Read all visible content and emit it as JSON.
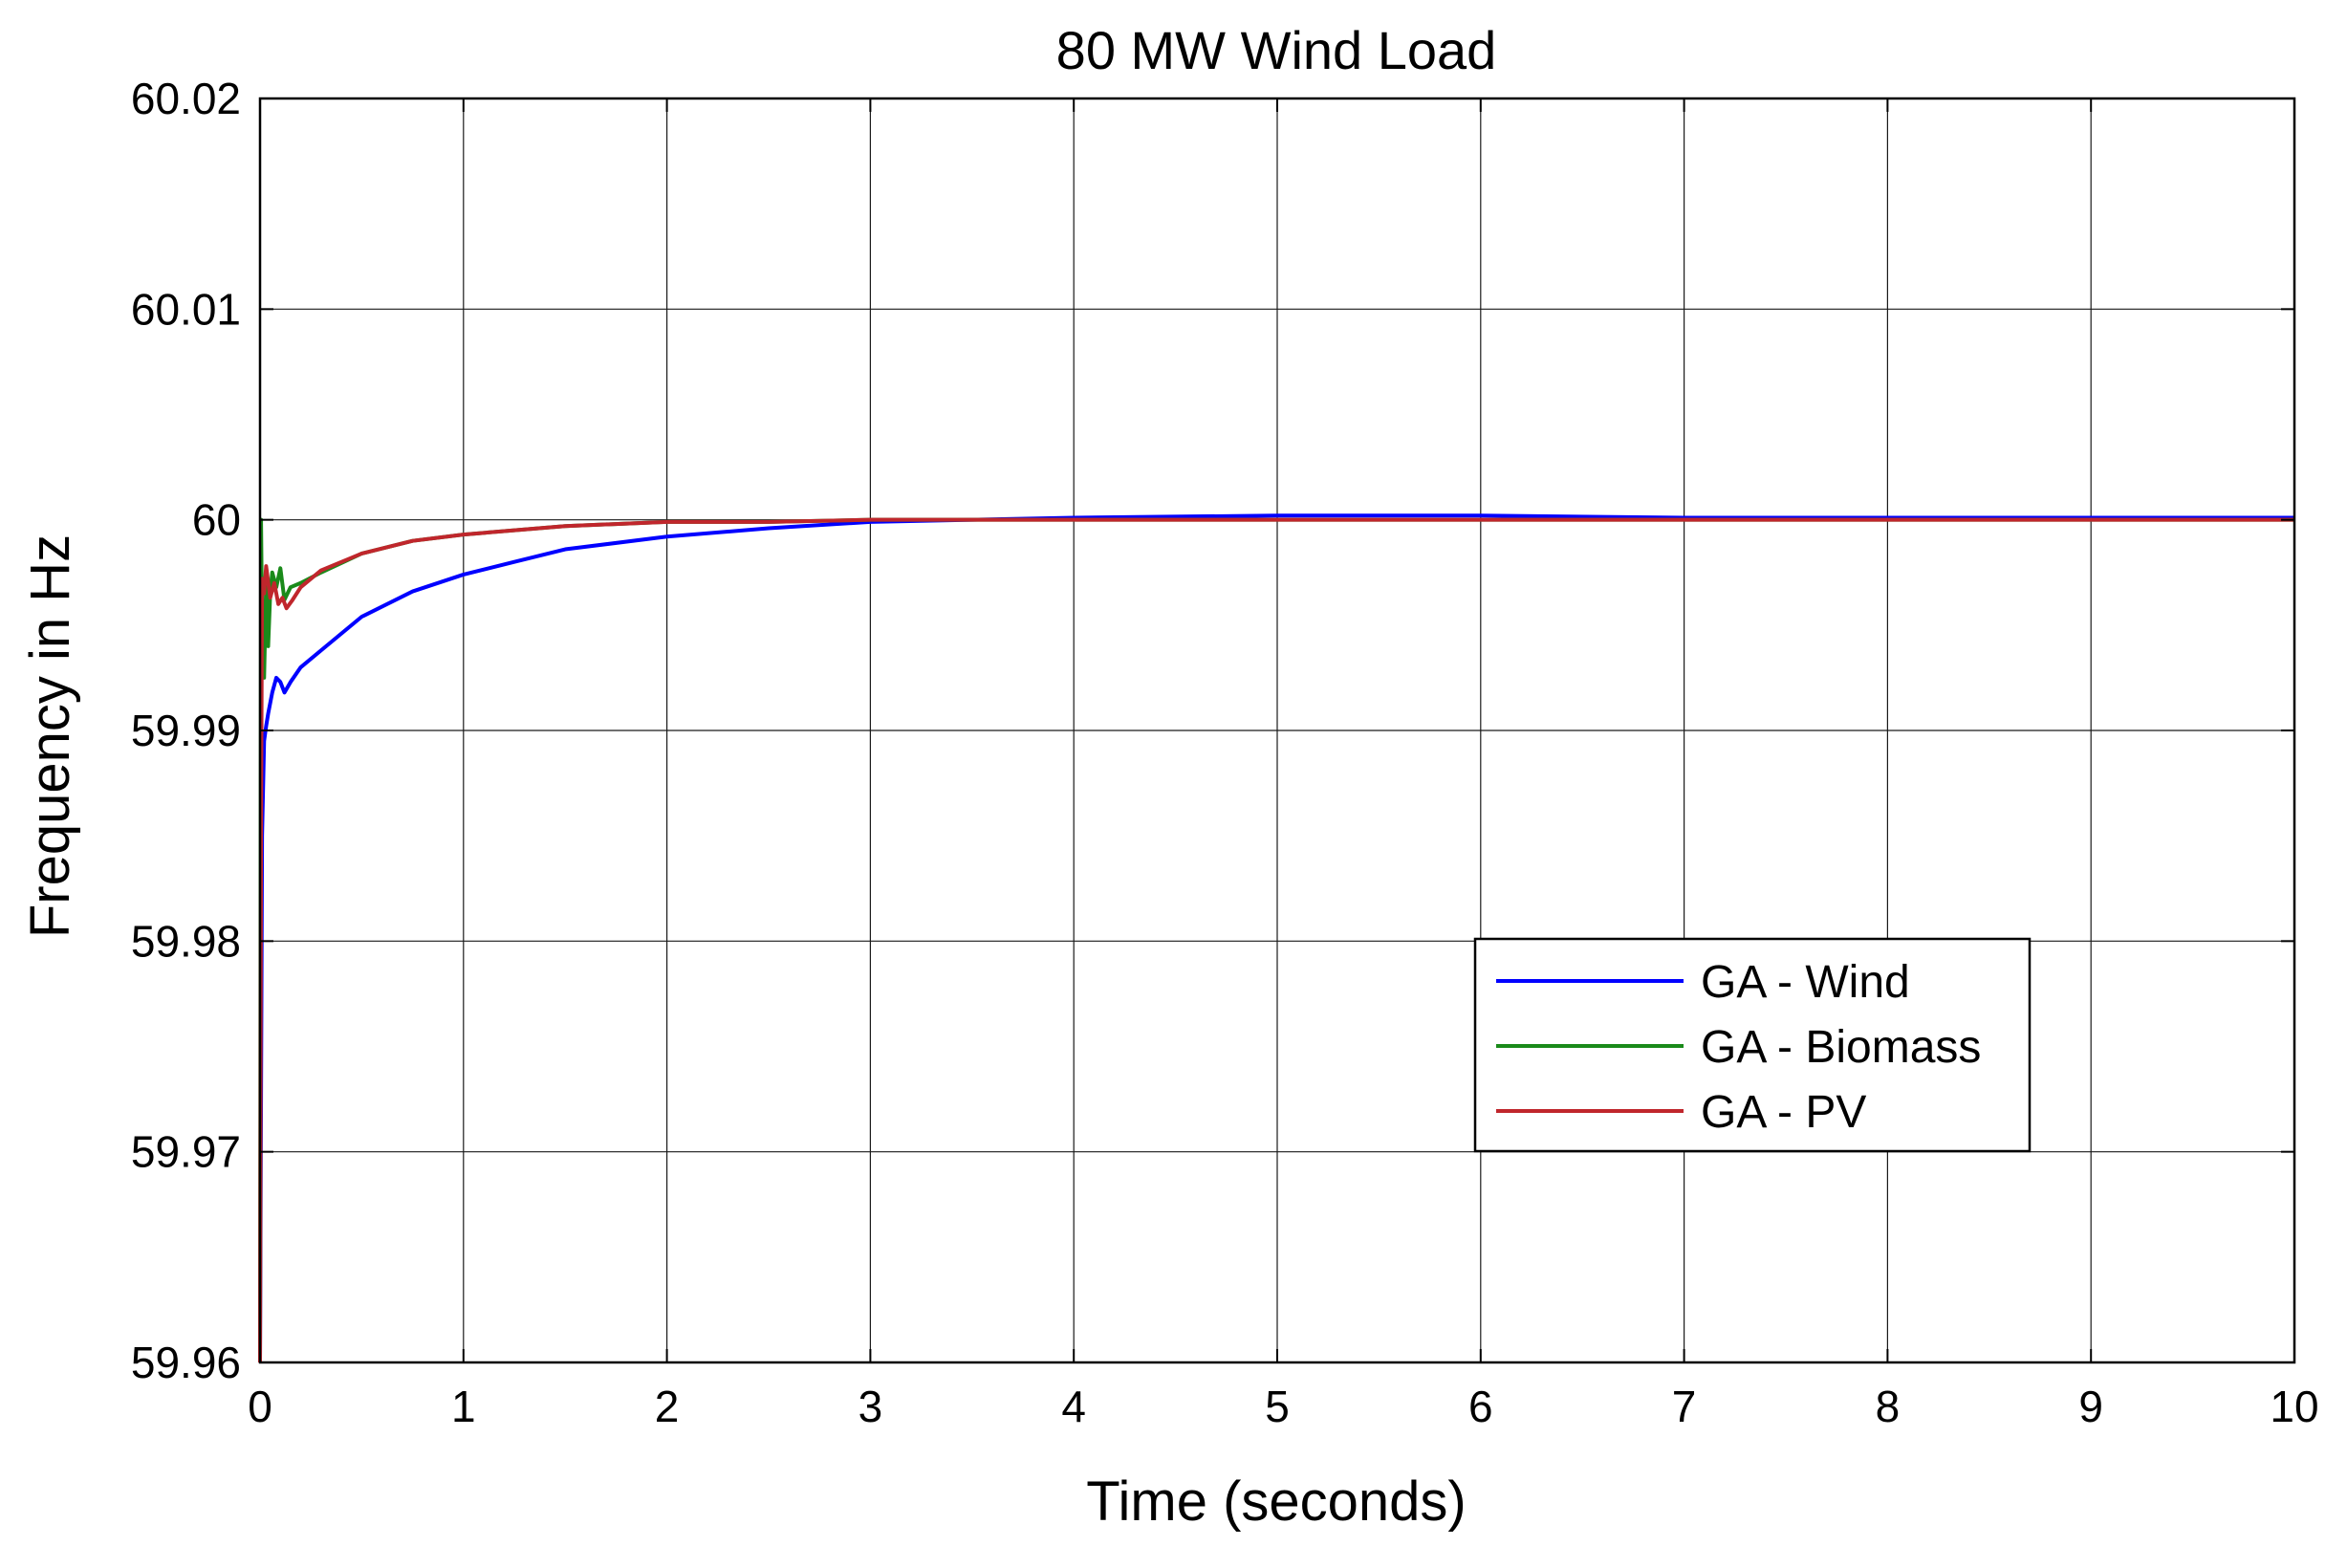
{
  "chart_data": {
    "type": "line",
    "title": "80 MW Wind Load",
    "xlabel": "Time (seconds)",
    "ylabel": "Frequency in Hz",
    "xlim": [
      0,
      10
    ],
    "ylim": [
      59.96,
      60.02
    ],
    "x_ticks": [
      0,
      1,
      2,
      3,
      4,
      5,
      6,
      7,
      8,
      9,
      10
    ],
    "x_tick_labels": [
      "0",
      "1",
      "2",
      "3",
      "4",
      "5",
      "6",
      "7",
      "8",
      "9",
      "10"
    ],
    "y_ticks": [
      59.96,
      59.97,
      59.98,
      59.99,
      60,
      60.01,
      60.02
    ],
    "y_tick_labels": [
      "59.96",
      "59.97",
      "59.98",
      "59.99",
      "60",
      "60.01",
      "60.02"
    ],
    "grid": true,
    "legend_position": "lower-right",
    "series": [
      {
        "name": "GA - Wind",
        "color": "#0000ff",
        "x": [
          0,
          0.01,
          0.02,
          0.03,
          0.04,
          0.06,
          0.08,
          0.1,
          0.12,
          0.15,
          0.2,
          0.3,
          0.5,
          0.75,
          1,
          1.25,
          1.5,
          2,
          2.5,
          3,
          3.5,
          4,
          5,
          6,
          7,
          8,
          9,
          10
        ],
        "y": [
          59.96,
          59.985,
          59.9895,
          59.9902,
          59.9908,
          59.9918,
          59.9925,
          59.9923,
          59.9918,
          59.9923,
          59.993,
          59.9938,
          59.9954,
          59.9966,
          59.9974,
          59.998,
          59.9986,
          59.9992,
          59.9996,
          59.9999,
          60.0,
          60.0001,
          60.0002,
          60.0002,
          60.0001,
          60.0001,
          60.0001,
          60.0001
        ]
      },
      {
        "name": "GA - Biomass",
        "color": "#1a8a1a",
        "x": [
          0,
          0.005,
          0.01,
          0.02,
          0.03,
          0.04,
          0.05,
          0.06,
          0.08,
          0.1,
          0.12,
          0.15,
          0.2,
          0.3,
          0.5,
          0.75,
          1,
          1.5,
          2,
          2.5,
          3,
          4,
          5,
          6,
          7,
          8,
          9,
          10
        ],
        "y": [
          59.96,
          60.0,
          59.995,
          59.9925,
          59.997,
          59.994,
          59.9965,
          59.9975,
          59.9968,
          59.9977,
          59.9962,
          59.9968,
          59.997,
          59.9975,
          59.9984,
          59.999,
          59.9993,
          59.9997,
          59.9999,
          59.9999,
          60.0,
          60.0,
          60.0,
          60.0,
          60.0,
          60.0,
          60.0,
          60.0
        ]
      },
      {
        "name": "GA - PV",
        "color": "#c0262c",
        "x": [
          0,
          0.005,
          0.01,
          0.02,
          0.03,
          0.05,
          0.07,
          0.09,
          0.11,
          0.13,
          0.16,
          0.2,
          0.3,
          0.5,
          0.75,
          1,
          1.5,
          2,
          2.5,
          3,
          4,
          5,
          6,
          7,
          8,
          9,
          10
        ],
        "y": [
          59.96,
          59.985,
          59.9972,
          59.9965,
          59.9978,
          59.9963,
          59.997,
          59.996,
          59.9963,
          59.9958,
          59.9962,
          59.9968,
          59.9976,
          59.9984,
          59.999,
          59.9993,
          59.9997,
          59.9999,
          59.9999,
          60.0,
          60.0,
          60.0,
          60.0,
          60.0,
          60.0,
          60.0,
          60.0
        ]
      }
    ]
  }
}
